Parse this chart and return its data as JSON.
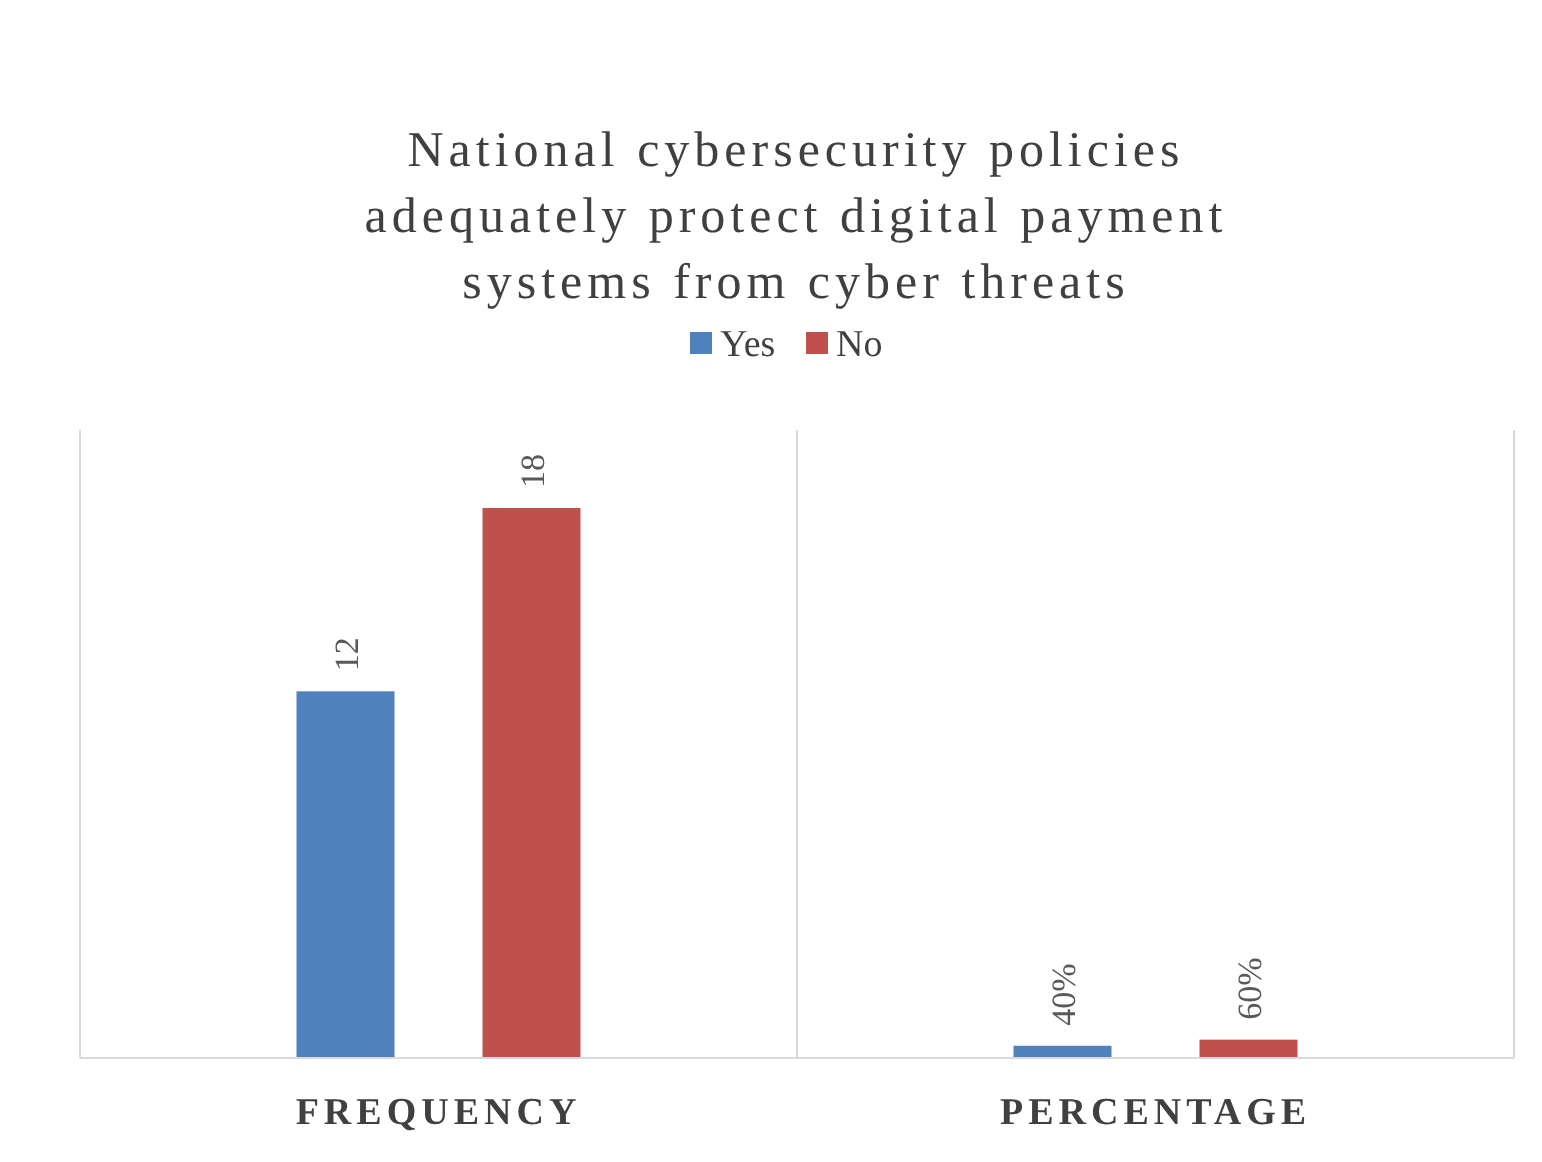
{
  "chart_data": {
    "type": "bar",
    "title": "National cybersecurity policies adequately protect digital payment systems from cyber threats",
    "categories": [
      "FREQUENCY",
      "PERCENTAGE"
    ],
    "series": [
      {
        "name": "Yes",
        "color": "#4f81bd",
        "values": [
          12,
          0.4
        ],
        "value_labels": [
          "12",
          "40%"
        ]
      },
      {
        "name": "No",
        "color": "#c0504d",
        "values": [
          18,
          0.6
        ],
        "value_labels": [
          "18",
          "60%"
        ]
      }
    ],
    "legend": "top",
    "grid": "x"
  }
}
